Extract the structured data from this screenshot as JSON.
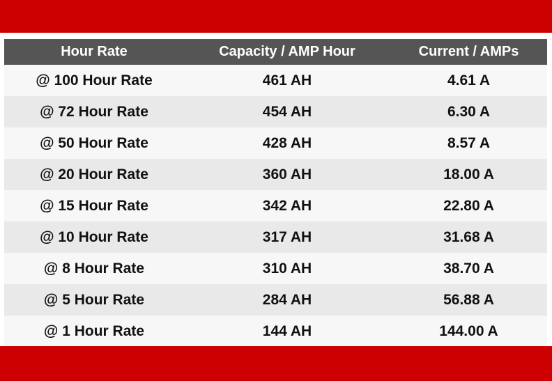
{
  "colors": {
    "accent_red": "#cc0000",
    "header_bg": "#555555",
    "row_light": "#f7f7f7",
    "row_dark": "#e9e9e9"
  },
  "table": {
    "headers": [
      "Hour Rate",
      "Capacity / AMP Hour",
      "Current / AMPs"
    ],
    "rows": [
      [
        "@ 100 Hour Rate",
        "461 AH",
        "4.61 A"
      ],
      [
        "@ 72 Hour Rate",
        "454 AH",
        "6.30 A"
      ],
      [
        "@ 50 Hour Rate",
        "428 AH",
        "8.57 A"
      ],
      [
        "@ 20 Hour Rate",
        "360 AH",
        "18.00 A"
      ],
      [
        "@ 15 Hour Rate",
        "342 AH",
        "22.80 A"
      ],
      [
        "@ 10 Hour Rate",
        "317 AH",
        "31.68 A"
      ],
      [
        "@ 8 Hour Rate",
        "310 AH",
        "38.70 A"
      ],
      [
        "@ 5 Hour Rate",
        "284 AH",
        "56.88 A"
      ],
      [
        "@ 1 Hour Rate",
        "144 AH",
        "144.00 A"
      ]
    ]
  }
}
